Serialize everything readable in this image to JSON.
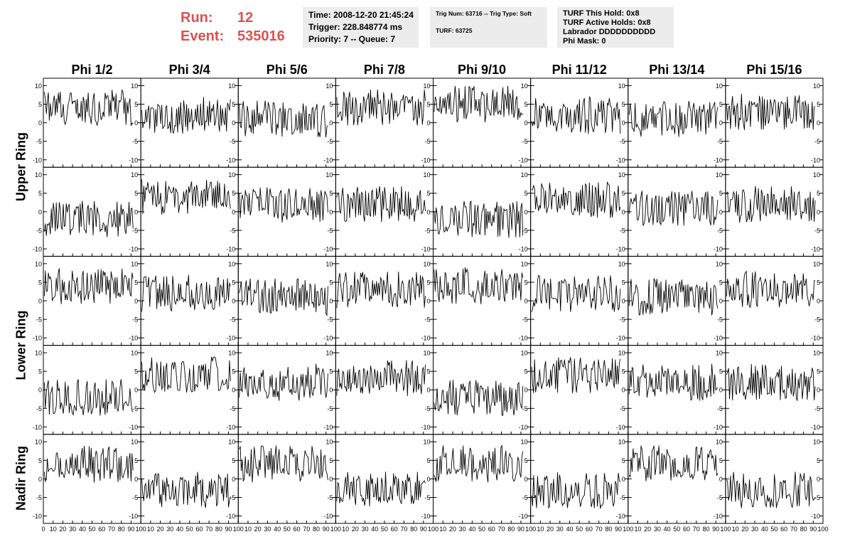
{
  "header": {
    "run_label": "Run:",
    "run_value": "12",
    "event_label": "Event:",
    "event_value": "535016",
    "colors": {
      "run": "#d9534f",
      "box": "#ececec",
      "trace": "#000000"
    }
  },
  "info_time": {
    "line1": "Time: 2008-12-20 21:45:24",
    "line2": "Trigger: 228.848774 ms",
    "line3": "Priority: 7 -- Queue: 7"
  },
  "info_trig": {
    "line1": "Trig Num: 63716 -- Trig Type: Soft",
    "line2": "TURF: 63725"
  },
  "info_turf": {
    "line1": "TURF This Hold: 0x8",
    "line2": "TURF Active Holds: 0x8",
    "line3": "Labrador DDDDDDDDDD",
    "line4": "Phi Mask: 0"
  },
  "chart_data": {
    "type": "line",
    "columns": [
      "Phi 1/2",
      "Phi 3/4",
      "Phi 5/6",
      "Phi 7/8",
      "Phi 9/10",
      "Phi 11/12",
      "Phi 13/14",
      "Phi 15/16"
    ],
    "ring_groups": [
      {
        "label": "Upper Ring",
        "rows": [
          0,
          1
        ]
      },
      {
        "label": "Lower Ring",
        "rows": [
          2,
          3
        ]
      },
      {
        "label": "Nadir Ring",
        "rows": [
          4
        ]
      }
    ],
    "xlim": [
      0,
      100
    ],
    "ylim": [
      -12,
      12
    ],
    "x_ticks": [
      0,
      10,
      20,
      30,
      40,
      50,
      60,
      70,
      80,
      90,
      100
    ],
    "x_tick_labels": [
      "0",
      "10",
      "20",
      "30",
      "40",
      "50",
      "60",
      "70",
      "80",
      "90",
      "100"
    ],
    "y_ticks": [
      -10,
      -5,
      0,
      5,
      10
    ],
    "y_tick_labels": [
      "-10",
      "-5",
      "0",
      "5",
      "10"
    ],
    "samples": 90,
    "panel_baselines": [
      [
        4,
        2,
        1,
        4,
        5,
        2,
        1,
        3
      ],
      [
        -2,
        4,
        2,
        2,
        -2,
        3,
        1,
        2
      ],
      [
        4,
        2,
        1,
        3,
        4,
        2,
        1,
        3
      ],
      [
        -2,
        4,
        2,
        3,
        -2,
        4,
        2,
        2
      ],
      [
        4,
        -3,
        4,
        -3,
        4,
        -3,
        4,
        -3
      ]
    ]
  }
}
